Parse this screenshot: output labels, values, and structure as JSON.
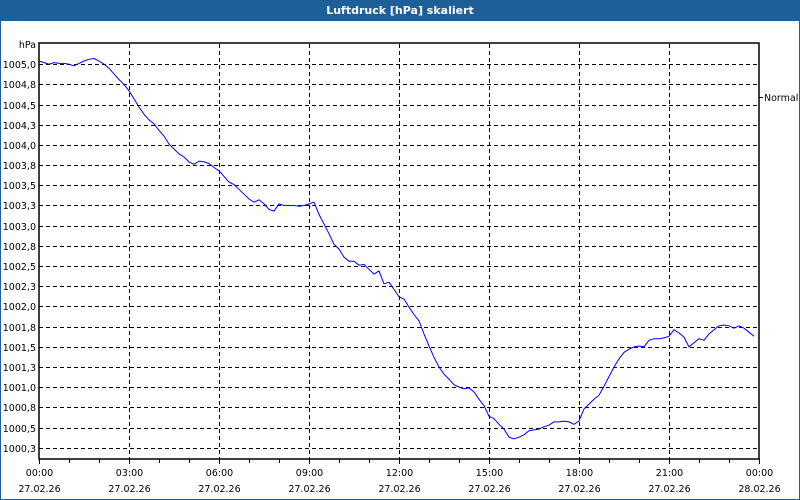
{
  "window": {
    "title": "Luftdruck [hPa] skaliert"
  },
  "colors": {
    "titlebar": "#1d5f98",
    "series": "#0000ff",
    "grid": "#000000"
  },
  "chart_data": {
    "type": "line",
    "title": "Luftdruck [hPa] skaliert",
    "ylabel": "hPa",
    "xlabel": "",
    "ylim": [
      1000.11,
      1005.25
    ],
    "xlim_hours": [
      0,
      24
    ],
    "grid": true,
    "legend": {
      "position": "right",
      "entries": [
        "Normal"
      ]
    },
    "y_ticks": [
      {
        "value": 1005.25,
        "label": "hPa"
      },
      {
        "value": 1005.0,
        "label": "1005,0"
      },
      {
        "value": 1004.75,
        "label": "1004,8"
      },
      {
        "value": 1004.5,
        "label": "1004,5"
      },
      {
        "value": 1004.25,
        "label": "1004,3"
      },
      {
        "value": 1004.0,
        "label": "1004,0"
      },
      {
        "value": 1003.75,
        "label": "1003,8"
      },
      {
        "value": 1003.5,
        "label": "1003,5"
      },
      {
        "value": 1003.25,
        "label": "1003,3"
      },
      {
        "value": 1003.0,
        "label": "1003,0"
      },
      {
        "value": 1002.75,
        "label": "1002,8"
      },
      {
        "value": 1002.5,
        "label": "1002,5"
      },
      {
        "value": 1002.25,
        "label": "1002,3"
      },
      {
        "value": 1002.0,
        "label": "1002,0"
      },
      {
        "value": 1001.75,
        "label": "1001,8"
      },
      {
        "value": 1001.5,
        "label": "1001,5"
      },
      {
        "value": 1001.25,
        "label": "1001,3"
      },
      {
        "value": 1001.0,
        "label": "1001,0"
      },
      {
        "value": 1000.75,
        "label": "1000,8"
      },
      {
        "value": 1000.5,
        "label": "1000,5"
      },
      {
        "value": 1000.25,
        "label": "1000,3"
      }
    ],
    "x_ticks": [
      {
        "hour": 0,
        "time": "00:00",
        "date": "27.02.26"
      },
      {
        "hour": 3,
        "time": "03:00",
        "date": "27.02.26"
      },
      {
        "hour": 6,
        "time": "06:00",
        "date": "27.02.26"
      },
      {
        "hour": 9,
        "time": "09:00",
        "date": "27.02.26"
      },
      {
        "hour": 12,
        "time": "12:00",
        "date": "27.02.26"
      },
      {
        "hour": 15,
        "time": "15:00",
        "date": "27.02.26"
      },
      {
        "hour": 18,
        "time": "18:00",
        "date": "27.02.26"
      },
      {
        "hour": 21,
        "time": "21:00",
        "date": "27.02.26"
      },
      {
        "hour": 24,
        "time": "00:00",
        "date": "28.02.26"
      }
    ],
    "series": [
      {
        "name": "Normal",
        "start_hour": 0,
        "step_minutes": 10,
        "values": [
          1005.04,
          1005.02,
          1005.0,
          1005.02,
          1005.01,
          1005.01,
          1005.0,
          1004.98,
          1005.01,
          1005.04,
          1005.06,
          1005.07,
          1005.04,
          1005.0,
          1004.95,
          1004.88,
          1004.81,
          1004.75,
          1004.67,
          1004.57,
          1004.47,
          1004.38,
          1004.31,
          1004.26,
          1004.18,
          1004.11,
          1004.01,
          1003.95,
          1003.89,
          1003.85,
          1003.79,
          1003.76,
          1003.8,
          1003.79,
          1003.77,
          1003.72,
          1003.68,
          1003.61,
          1003.54,
          1003.51,
          1003.45,
          1003.39,
          1003.33,
          1003.29,
          1003.32,
          1003.27,
          1003.2,
          1003.18,
          1003.27,
          1003.25,
          1003.25,
          1003.25,
          1003.24,
          1003.25,
          1003.27,
          1003.29,
          1003.14,
          1003.02,
          1002.9,
          1002.77,
          1002.71,
          1002.61,
          1002.56,
          1002.56,
          1002.51,
          1002.52,
          1002.46,
          1002.4,
          1002.44,
          1002.28,
          1002.3,
          1002.21,
          1002.12,
          1002.09,
          1001.99,
          1001.9,
          1001.82,
          1001.66,
          1001.51,
          1001.37,
          1001.25,
          1001.16,
          1001.1,
          1001.03,
          1001.0,
          1000.98,
          1000.99,
          1000.94,
          1000.85,
          1000.77,
          1000.64,
          1000.61,
          1000.54,
          1000.48,
          1000.38,
          1000.36,
          1000.38,
          1000.41,
          1000.46,
          1000.47,
          1000.48,
          1000.51,
          1000.53,
          1000.57,
          1000.57,
          1000.58,
          1000.57,
          1000.54,
          1000.58,
          1000.73,
          1000.79,
          1000.85,
          1000.9,
          1001.01,
          1001.13,
          1001.25,
          1001.35,
          1001.43,
          1001.47,
          1001.5,
          1001.51,
          1001.5,
          1001.58,
          1001.6,
          1001.6,
          1001.61,
          1001.63,
          1001.71,
          1001.67,
          1001.62,
          1001.5,
          1001.55,
          1001.6,
          1001.58,
          1001.66,
          1001.71,
          1001.76,
          1001.77,
          1001.76,
          1001.73,
          1001.76,
          1001.73,
          1001.68,
          1001.63
        ]
      }
    ]
  }
}
